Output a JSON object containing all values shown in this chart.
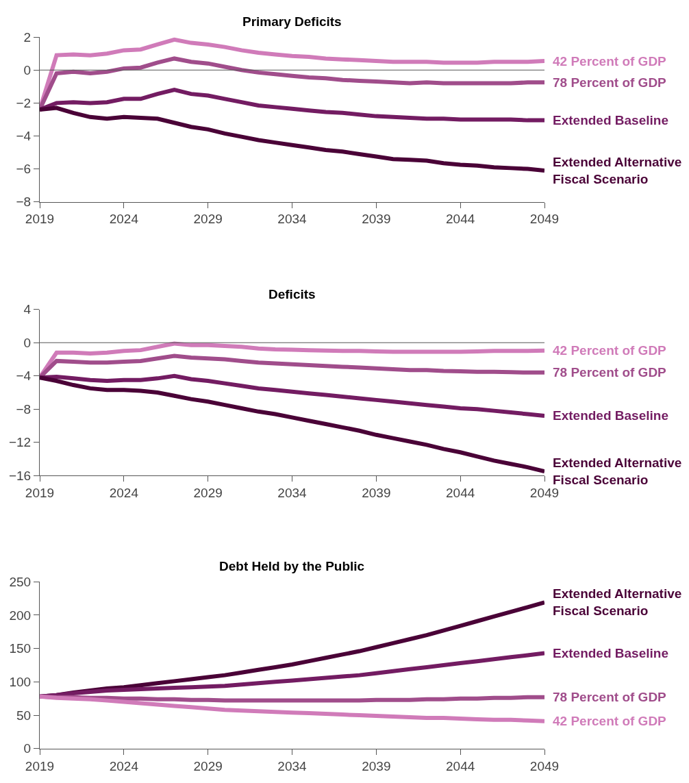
{
  "chart_data": [
    {
      "type": "line",
      "title": "Primary Deficits",
      "x": [
        2019,
        2020,
        2021,
        2022,
        2023,
        2024,
        2025,
        2026,
        2027,
        2028,
        2029,
        2030,
        2031,
        2032,
        2033,
        2034,
        2035,
        2036,
        2037,
        2038,
        2039,
        2040,
        2041,
        2042,
        2043,
        2044,
        2045,
        2046,
        2047,
        2048,
        2049
      ],
      "xlim": [
        2019,
        2049
      ],
      "xticks": [
        2019,
        2024,
        2029,
        2034,
        2039,
        2044,
        2049
      ],
      "ylim": [
        -8,
        2
      ],
      "yticks": [
        -8,
        -6,
        -4,
        -2,
        0,
        2
      ],
      "ref_lines": [
        {
          "axis": "y",
          "value": 0,
          "color": "#555555"
        }
      ],
      "series": [
        {
          "name": "42 Percent of GDP",
          "color": "#d07bb9",
          "values": [
            -2.4,
            0.9,
            0.95,
            0.9,
            1.0,
            1.2,
            1.25,
            1.55,
            1.85,
            1.65,
            1.55,
            1.4,
            1.2,
            1.05,
            0.95,
            0.85,
            0.8,
            0.7,
            0.65,
            0.6,
            0.55,
            0.5,
            0.5,
            0.5,
            0.45,
            0.45,
            0.45,
            0.5,
            0.5,
            0.5,
            0.55
          ]
        },
        {
          "name": "78 Percent of GDP",
          "color": "#a04d8b",
          "values": [
            -2.4,
            -0.2,
            -0.1,
            -0.2,
            -0.1,
            0.1,
            0.15,
            0.45,
            0.7,
            0.5,
            0.4,
            0.2,
            0.0,
            -0.15,
            -0.25,
            -0.35,
            -0.45,
            -0.5,
            -0.6,
            -0.65,
            -0.7,
            -0.75,
            -0.8,
            -0.75,
            -0.8,
            -0.8,
            -0.8,
            -0.8,
            -0.8,
            -0.75,
            -0.75
          ]
        },
        {
          "name": "Extended Baseline",
          "color": "#731c62",
          "values": [
            -2.4,
            -2.0,
            -1.95,
            -2.0,
            -1.95,
            -1.75,
            -1.75,
            -1.45,
            -1.2,
            -1.45,
            -1.55,
            -1.75,
            -1.95,
            -2.15,
            -2.25,
            -2.35,
            -2.45,
            -2.55,
            -2.6,
            -2.7,
            -2.8,
            -2.85,
            -2.9,
            -2.95,
            -2.95,
            -3.0,
            -3.0,
            -3.0,
            -3.0,
            -3.05,
            -3.05
          ]
        },
        {
          "name": "Extended Alternative Fiscal Scenario",
          "color": "#4a0237",
          "values": [
            -2.4,
            -2.3,
            -2.6,
            -2.85,
            -2.95,
            -2.85,
            -2.9,
            -2.95,
            -3.2,
            -3.45,
            -3.6,
            -3.85,
            -4.05,
            -4.25,
            -4.4,
            -4.55,
            -4.7,
            -4.85,
            -4.95,
            -5.1,
            -5.25,
            -5.4,
            -5.45,
            -5.5,
            -5.65,
            -5.75,
            -5.8,
            -5.9,
            -5.95,
            -6.0,
            -6.1
          ]
        }
      ]
    },
    {
      "type": "line",
      "title": "Deficits",
      "x": [
        2019,
        2020,
        2021,
        2022,
        2023,
        2024,
        2025,
        2026,
        2027,
        2028,
        2029,
        2030,
        2031,
        2032,
        2033,
        2034,
        2035,
        2036,
        2037,
        2038,
        2039,
        2040,
        2041,
        2042,
        2043,
        2044,
        2045,
        2046,
        2047,
        2048,
        2049
      ],
      "xlim": [
        2019,
        2049
      ],
      "xticks": [
        2019,
        2024,
        2029,
        2034,
        2039,
        2044,
        2049
      ],
      "ylim": [
        -16,
        4
      ],
      "yticks": [
        -16,
        -12,
        -8,
        -4,
        0,
        4
      ],
      "ref_lines": [
        {
          "axis": "y",
          "value": 0,
          "color": "#555555"
        }
      ],
      "series": [
        {
          "name": "42 Percent of GDP",
          "color": "#d07bb9",
          "values": [
            -4.2,
            -1.2,
            -1.2,
            -1.3,
            -1.2,
            -1.0,
            -0.9,
            -0.5,
            -0.1,
            -0.3,
            -0.3,
            -0.4,
            -0.5,
            -0.7,
            -0.8,
            -0.85,
            -0.9,
            -0.95,
            -1.0,
            -1.0,
            -1.05,
            -1.1,
            -1.1,
            -1.1,
            -1.1,
            -1.1,
            -1.05,
            -1.0,
            -1.0,
            -1.0,
            -0.95
          ]
        },
        {
          "name": "78 Percent of GDP",
          "color": "#a04d8b",
          "values": [
            -4.2,
            -2.2,
            -2.3,
            -2.4,
            -2.4,
            -2.3,
            -2.2,
            -1.9,
            -1.6,
            -1.8,
            -1.9,
            -2.0,
            -2.2,
            -2.4,
            -2.5,
            -2.6,
            -2.7,
            -2.8,
            -2.9,
            -3.0,
            -3.1,
            -3.2,
            -3.3,
            -3.3,
            -3.4,
            -3.45,
            -3.5,
            -3.5,
            -3.55,
            -3.6,
            -3.6
          ]
        },
        {
          "name": "Extended Baseline",
          "color": "#731c62",
          "values": [
            -4.2,
            -4.1,
            -4.3,
            -4.5,
            -4.6,
            -4.5,
            -4.5,
            -4.3,
            -4.0,
            -4.4,
            -4.6,
            -4.9,
            -5.2,
            -5.5,
            -5.7,
            -5.9,
            -6.1,
            -6.3,
            -6.5,
            -6.7,
            -6.9,
            -7.1,
            -7.3,
            -7.5,
            -7.7,
            -7.9,
            -8.0,
            -8.2,
            -8.4,
            -8.6,
            -8.8
          ]
        },
        {
          "name": "Extended Alternative Fiscal Scenario",
          "color": "#4a0237",
          "values": [
            -4.2,
            -4.6,
            -5.1,
            -5.5,
            -5.7,
            -5.7,
            -5.8,
            -6.0,
            -6.4,
            -6.8,
            -7.1,
            -7.5,
            -7.9,
            -8.3,
            -8.6,
            -9.0,
            -9.4,
            -9.8,
            -10.2,
            -10.6,
            -11.1,
            -11.5,
            -11.9,
            -12.3,
            -12.8,
            -13.2,
            -13.7,
            -14.2,
            -14.6,
            -15.0,
            -15.5
          ]
        }
      ]
    },
    {
      "type": "line",
      "title": "Debt Held by the Public",
      "x": [
        2019,
        2020,
        2021,
        2022,
        2023,
        2024,
        2025,
        2026,
        2027,
        2028,
        2029,
        2030,
        2031,
        2032,
        2033,
        2034,
        2035,
        2036,
        2037,
        2038,
        2039,
        2040,
        2041,
        2042,
        2043,
        2044,
        2045,
        2046,
        2047,
        2048,
        2049
      ],
      "xlim": [
        2019,
        2049
      ],
      "xticks": [
        2019,
        2024,
        2029,
        2034,
        2039,
        2044,
        2049
      ],
      "ylim": [
        0,
        250
      ],
      "yticks": [
        0,
        50,
        100,
        150,
        200,
        250
      ],
      "series": [
        {
          "name": "Extended Alternative Fiscal Scenario",
          "color": "#4a0237",
          "values": [
            78,
            80,
            84,
            87,
            90,
            92,
            95,
            98,
            101,
            104,
            107,
            110,
            114,
            118,
            122,
            126,
            131,
            136,
            141,
            146,
            152,
            158,
            164,
            170,
            177,
            184,
            191,
            198,
            205,
            212,
            219
          ]
        },
        {
          "name": "Extended Baseline",
          "color": "#731c62",
          "values": [
            78,
            80,
            83,
            85,
            87,
            88,
            89,
            90,
            91,
            92,
            93,
            94,
            96,
            98,
            100,
            102,
            104,
            106,
            108,
            110,
            113,
            116,
            119,
            122,
            125,
            128,
            131,
            134,
            137,
            140,
            143
          ]
        },
        {
          "name": "78 Percent of GDP",
          "color": "#a04d8b",
          "values": [
            78,
            77,
            77,
            76,
            76,
            75,
            75,
            74,
            74,
            73,
            73,
            72,
            72,
            72,
            72,
            72,
            72,
            72,
            72,
            72,
            73,
            73,
            73,
            74,
            74,
            75,
            75,
            76,
            76,
            77,
            77
          ]
        },
        {
          "name": "42 Percent of GDP",
          "color": "#d07bb9",
          "values": [
            78,
            76,
            75,
            74,
            72,
            70,
            68,
            66,
            64,
            62,
            60,
            58,
            57,
            56,
            55,
            54,
            53,
            52,
            51,
            50,
            49,
            48,
            47,
            46,
            46,
            45,
            44,
            43,
            43,
            42,
            41
          ]
        }
      ]
    }
  ]
}
